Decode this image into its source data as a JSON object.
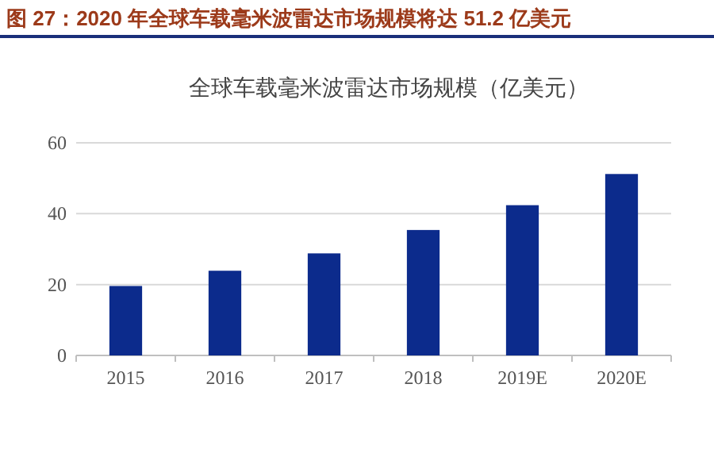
{
  "chart_data": {
    "type": "bar",
    "title": "图 27：2020 年全球车载毫米波雷达市场规模将达 51.2 亿美元",
    "subtitle": "全球车载毫米波雷达市场规模（亿美元）",
    "categories": [
      "2015",
      "2016",
      "2017",
      "2018",
      "2019E",
      "2020E"
    ],
    "values": [
      19.6,
      23.9,
      28.8,
      35.4,
      42.4,
      51.2
    ],
    "color": "#0c2b8c",
    "ylim": [
      0,
      60
    ],
    "yticks": [
      0,
      20,
      40,
      60
    ],
    "grid": "y"
  }
}
